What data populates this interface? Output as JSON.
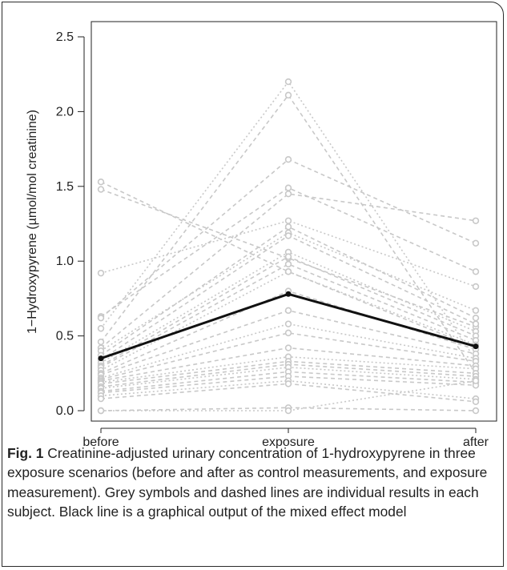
{
  "chart_data": {
    "type": "line",
    "title": "",
    "xlabel": "",
    "ylabel": "1−Hydroxypyrene (µmol/mol creatinine)",
    "categories": [
      "before",
      "exposure",
      "after"
    ],
    "ylim": [
      0,
      2.5
    ],
    "yticks": [
      "0.0",
      "0.5",
      "1.0",
      "1.5",
      "2.0",
      "2.5"
    ],
    "colors": {
      "individual": "#c8c8c8",
      "model": "#111111"
    },
    "model": {
      "name": "",
      "values": [
        0.35,
        0.78,
        0.43
      ]
    },
    "individual_series": [
      [
        1.53,
        0.93,
        0.42
      ],
      [
        1.48,
        1.02,
        0.56
      ],
      [
        0.92,
        1.27,
        0.83
      ],
      [
        0.63,
        1.49,
        0.93
      ],
      [
        0.62,
        1.68,
        1.12
      ],
      [
        0.55,
        2.2,
        0.34
      ],
      [
        0.46,
        2.11,
        0.25
      ],
      [
        0.42,
        1.45,
        1.27
      ],
      [
        0.4,
        1.19,
        0.67
      ],
      [
        0.37,
        1.23,
        0.62
      ],
      [
        0.34,
        1.17,
        0.58
      ],
      [
        0.32,
        1.06,
        0.53
      ],
      [
        0.3,
        1.03,
        0.5
      ],
      [
        0.29,
        0.98,
        0.47
      ],
      [
        0.27,
        0.93,
        0.44
      ],
      [
        0.25,
        0.8,
        0.41
      ],
      [
        0.24,
        0.67,
        0.38
      ],
      [
        0.22,
        0.58,
        0.35
      ],
      [
        0.21,
        0.52,
        0.33
      ],
      [
        0.2,
        0.42,
        0.3
      ],
      [
        0.19,
        0.36,
        0.28
      ],
      [
        0.18,
        0.33,
        0.25
      ],
      [
        0.16,
        0.31,
        0.23
      ],
      [
        0.15,
        0.29,
        0.21
      ],
      [
        0.13,
        0.26,
        0.19
      ],
      [
        0.12,
        0.23,
        0.17
      ],
      [
        0.1,
        0.2,
        0.08
      ],
      [
        0.08,
        0.18,
        0.06
      ],
      [
        0.0,
        0.02,
        0.0
      ],
      [
        0.0,
        0.0,
        0.2
      ]
    ]
  },
  "caption": {
    "label": "Fig. 1",
    "text": "Creatinine-adjusted urinary concentration of 1-hydroxypyrene in three exposure scenarios (before and after as control measurements, and exposure measurement). Grey symbols and dashed lines are individual results in each subject. Black line is a graphical output of the mixed effect model"
  }
}
